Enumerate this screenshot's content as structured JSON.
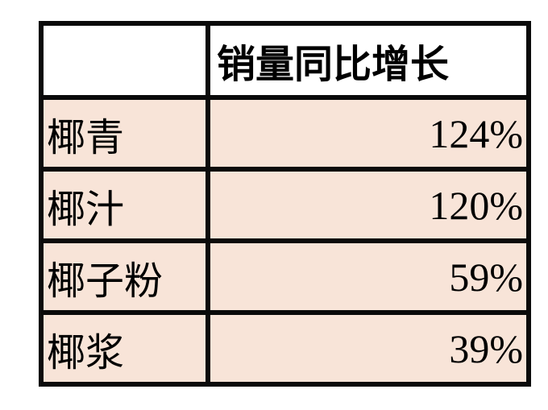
{
  "chart_data": {
    "type": "table",
    "columns": [
      "",
      "销量同比增长"
    ],
    "rows": [
      {
        "name": "椰青",
        "value": "124%"
      },
      {
        "name": "椰汁",
        "value": "120%"
      },
      {
        "name": "椰子粉",
        "value": "59%"
      },
      {
        "name": "椰浆",
        "value": "39%"
      }
    ],
    "values": [
      124,
      120,
      59,
      39
    ],
    "unit": "%"
  },
  "colors": {
    "row_fill": "#f8e4d8",
    "header_fill": "#ffffff",
    "border": "#0a0a0a"
  }
}
